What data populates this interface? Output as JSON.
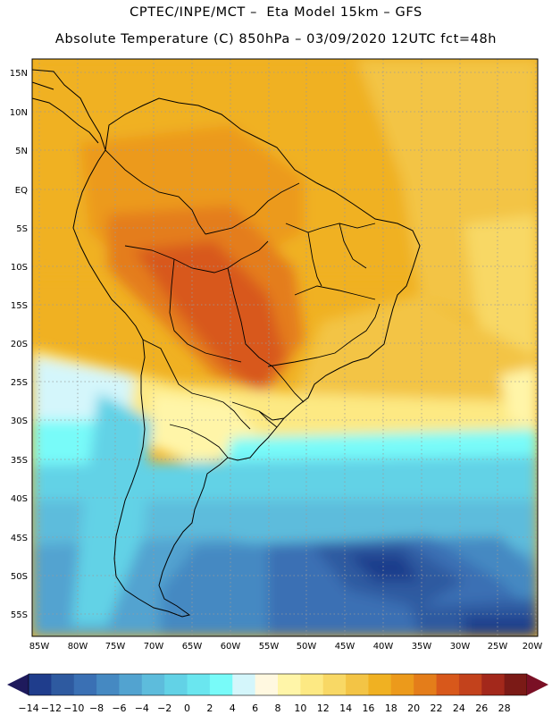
{
  "header": {
    "line1": "CPTEC/INPE/MCT –  Eta Model 15km – GFS",
    "line2": "Absolute Temperature (C) 850hPa – 03/09/2020 12UTC fct=48h"
  },
  "map": {
    "lat_labels": [
      "15N",
      "10N",
      "5N",
      "EQ",
      "5S",
      "10S",
      "15S",
      "20S",
      "25S",
      "30S",
      "35S",
      "40S",
      "45S",
      "50S",
      "55S"
    ],
    "lon_labels": [
      "85W",
      "80W",
      "75W",
      "70W",
      "65W",
      "60W",
      "55W",
      "50W",
      "45W",
      "40W",
      "35W",
      "30W",
      "25W",
      "20W"
    ]
  },
  "colorbar": {
    "labels": [
      "-14",
      "-12",
      "-10",
      "-8",
      "-6",
      "-4",
      "-2",
      "0",
      "2",
      "4",
      "6",
      "8",
      "10",
      "12",
      "14",
      "16",
      "18",
      "20",
      "22",
      "24",
      "26",
      "28"
    ],
    "colors": [
      "#1f3d8c",
      "#2e5aa0",
      "#3a70b4",
      "#4589c2",
      "#52a3d0",
      "#5dbcdc",
      "#62d2e6",
      "#6ae6ef",
      "#78fbf9",
      "#d4f6fb",
      "#fff8e0",
      "#fff5a8",
      "#fde983",
      "#f8d865",
      "#f3c445",
      "#f0b122",
      "#ec9a1b",
      "#e47d1a",
      "#d8581b",
      "#c3421c",
      "#a3281b",
      "#7b1a16"
    ],
    "under_color": "#1e1a5c",
    "over_color": "#7a1025"
  }
}
